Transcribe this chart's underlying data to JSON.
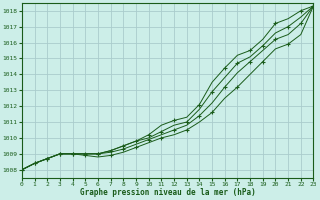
{
  "title": "Graphe pression niveau de la mer (hPa)",
  "bg_color": "#cceee8",
  "grid_color": "#aacccc",
  "line_color": "#1a5c1a",
  "xlim": [
    0,
    23
  ],
  "ylim": [
    1007.5,
    1018.5
  ],
  "yticks": [
    1008,
    1009,
    1010,
    1011,
    1012,
    1013,
    1014,
    1015,
    1016,
    1017,
    1018
  ],
  "xticks": [
    0,
    1,
    2,
    3,
    4,
    5,
    6,
    7,
    8,
    9,
    10,
    11,
    12,
    13,
    14,
    15,
    16,
    17,
    18,
    19,
    20,
    21,
    22,
    23
  ],
  "series": [
    [
      1008.0,
      1008.4,
      1008.7,
      1009.0,
      1009.0,
      1009.0,
      1009.0,
      1009.2,
      1009.5,
      1009.8,
      1010.2,
      1010.8,
      1011.1,
      1011.3,
      1012.1,
      1013.5,
      1014.4,
      1015.2,
      1015.5,
      1016.2,
      1017.2,
      1017.5,
      1018.0,
      1018.3
    ],
    [
      1008.0,
      1008.4,
      1008.7,
      1009.0,
      1009.0,
      1009.0,
      1009.0,
      1009.2,
      1009.5,
      1009.8,
      1010.0,
      1010.4,
      1010.8,
      1011.0,
      1011.8,
      1012.9,
      1013.8,
      1014.7,
      1015.1,
      1015.8,
      1016.6,
      1017.0,
      1017.6,
      1018.3
    ],
    [
      1008.0,
      1008.4,
      1008.7,
      1009.0,
      1009.0,
      1009.0,
      1009.0,
      1009.1,
      1009.3,
      1009.6,
      1009.9,
      1010.2,
      1010.5,
      1010.8,
      1011.4,
      1012.2,
      1013.2,
      1014.1,
      1014.8,
      1015.5,
      1016.2,
      1016.5,
      1017.2,
      1018.3
    ],
    [
      1008.0,
      1008.4,
      1008.7,
      1009.0,
      1009.0,
      1008.9,
      1008.8,
      1008.9,
      1009.1,
      1009.4,
      1009.7,
      1010.0,
      1010.2,
      1010.5,
      1011.0,
      1011.6,
      1012.5,
      1013.2,
      1014.0,
      1014.8,
      1015.6,
      1015.9,
      1016.5,
      1018.3
    ]
  ],
  "marker_xs_lines": [
    [
      0,
      2,
      4,
      6,
      8,
      10,
      12,
      14,
      16,
      18,
      20,
      22
    ],
    [
      1,
      3,
      5,
      7,
      9,
      11,
      13,
      15,
      17,
      19,
      21,
      23
    ],
    [
      0,
      2,
      4,
      6,
      8,
      10,
      12,
      14,
      16,
      18,
      20,
      22
    ],
    [
      1,
      3,
      5,
      7,
      9,
      11,
      13,
      15,
      17,
      19,
      21,
      23
    ]
  ]
}
